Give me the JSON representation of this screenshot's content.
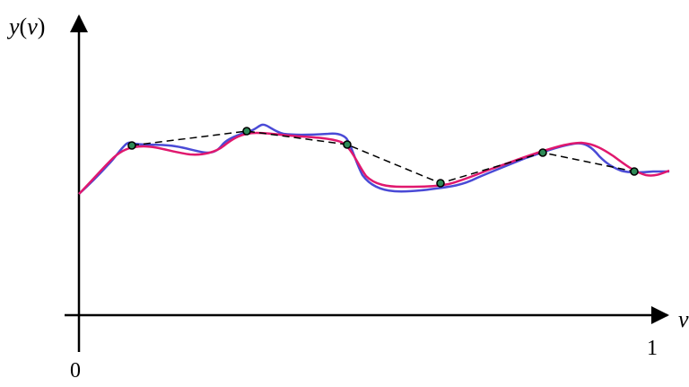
{
  "axes": {
    "y_label_main": "y",
    "y_label_open": "(",
    "y_label_var": "v",
    "y_label_close": ")",
    "x_label": "v",
    "origin_label": "0",
    "x_end_label": "1"
  },
  "colors": {
    "axis": "#000000",
    "blue_curve": "#4a4ad6",
    "pink_curve": "#e0186e",
    "dashed_line": "#000000",
    "point_fill": "#2e8b57",
    "point_stroke": "#000000"
  },
  "chart_data": {
    "type": "line",
    "xlim": [
      0,
      1
    ],
    "sample_points": [
      {
        "x": 0.09,
        "y": 0.4
      },
      {
        "x": 0.285,
        "y": 0.438
      },
      {
        "x": 0.455,
        "y": 0.396
      },
      {
        "x": 0.612,
        "y": 0.264
      },
      {
        "x": 0.793,
        "y": 0.346
      },
      {
        "x": 0.944,
        "y": 0.291
      }
    ]
  }
}
